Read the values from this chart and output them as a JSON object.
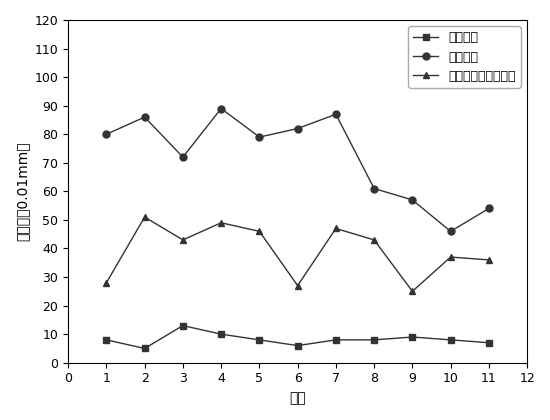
{
  "x": [
    1,
    2,
    3,
    4,
    5,
    6,
    7,
    8,
    9,
    10,
    11
  ],
  "series1": {
    "label": "碎石化前",
    "values": [
      8,
      5,
      13,
      10,
      8,
      6,
      8,
      8,
      9,
      8,
      7
    ],
    "marker": "s",
    "color": "#333333",
    "linestyle": "-"
  },
  "series2": {
    "label": "碎石化后",
    "values": [
      80,
      86,
      72,
      89,
      79,
      82,
      87,
      61,
      57,
      46,
      54
    ],
    "marker": "o",
    "color": "#333333",
    "linestyle": "-"
  },
  "series3": {
    "label": "洒布碎石纤维封层后",
    "values": [
      28,
      51,
      43,
      49,
      46,
      27,
      47,
      43,
      25,
      37,
      36
    ],
    "marker": "^",
    "color": "#333333",
    "linestyle": "-"
  },
  "xlabel": "测点",
  "ylabel": "弯沉值（0.01mm）",
  "xlim": [
    0,
    12
  ],
  "ylim": [
    0,
    120
  ],
  "yticks": [
    0,
    10,
    20,
    30,
    40,
    50,
    60,
    70,
    80,
    90,
    100,
    110,
    120
  ],
  "xticks": [
    0,
    1,
    2,
    3,
    4,
    5,
    6,
    7,
    8,
    9,
    10,
    11,
    12
  ],
  "background_color": "#ffffff",
  "label_fontsize": 10,
  "tick_fontsize": 9,
  "legend_fontsize": 9,
  "figsize": [
    5.5,
    4.2
  ],
  "dpi": 100
}
